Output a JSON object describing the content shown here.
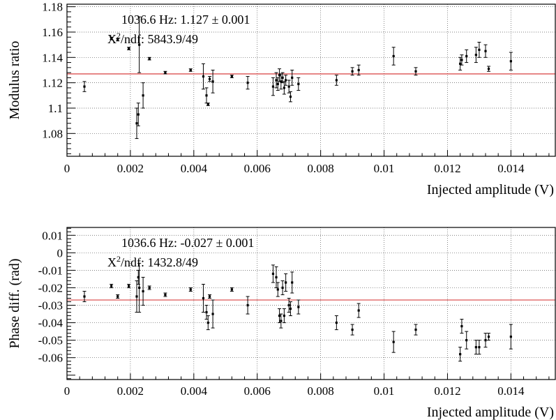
{
  "chart_data": [
    {
      "type": "scatter",
      "ylabel": "Modulus ratio",
      "xlabel": "Injected amplitude (V)",
      "xlim": [
        0,
        0.0154
      ],
      "ylim": [
        1.062,
        1.182
      ],
      "xticks": [
        0,
        0.002,
        0.004,
        0.006,
        0.008,
        0.01,
        0.012,
        0.014
      ],
      "xtick_labels": [
        "0",
        "0.002",
        "0.004",
        "0.006",
        "0.008",
        "0.01",
        "0.012",
        "0.014"
      ],
      "yticks": [
        1.08,
        1.1,
        1.12,
        1.14,
        1.16,
        1.18
      ],
      "ytick_labels": [
        "1.08",
        "1.1",
        "1.12",
        "1.14",
        "1.16",
        "1.18"
      ],
      "grid": true,
      "fit_label": "1036.6 Hz: 1.127  ± 0.001",
      "chi2_label": "/ndf: 5843.9/49",
      "fit_value": 1.127,
      "fit_color": "#d42a2a",
      "points": [
        {
          "x": 0.00055,
          "y": 1.117,
          "err": 0.004
        },
        {
          "x": 0.0014,
          "y": 1.155,
          "err": 0.001
        },
        {
          "x": 0.0016,
          "y": 1.154,
          "err": 0.001
        },
        {
          "x": 0.00195,
          "y": 1.147,
          "err": 0.001
        },
        {
          "x": 0.0022,
          "y": 1.088,
          "err": 0.012
        },
        {
          "x": 0.00225,
          "y": 1.095,
          "err": 0.009
        },
        {
          "x": 0.00228,
          "y": 1.15,
          "err": 0.022
        },
        {
          "x": 0.0024,
          "y": 1.11,
          "err": 0.01
        },
        {
          "x": 0.0026,
          "y": 1.139,
          "err": 0.001
        },
        {
          "x": 0.0031,
          "y": 1.128,
          "err": 0.001
        },
        {
          "x": 0.0039,
          "y": 1.13,
          "err": 0.001
        },
        {
          "x": 0.0043,
          "y": 1.125,
          "err": 0.01
        },
        {
          "x": 0.0044,
          "y": 1.11,
          "err": 0.006
        },
        {
          "x": 0.00445,
          "y": 1.103,
          "err": 0.001
        },
        {
          "x": 0.0045,
          "y": 1.123,
          "err": 0.002
        },
        {
          "x": 0.0046,
          "y": 1.121,
          "err": 0.009
        },
        {
          "x": 0.0052,
          "y": 1.125,
          "err": 0.001
        },
        {
          "x": 0.0057,
          "y": 1.12,
          "err": 0.005
        },
        {
          "x": 0.0065,
          "y": 1.117,
          "err": 0.007
        },
        {
          "x": 0.0066,
          "y": 1.122,
          "err": 0.006
        },
        {
          "x": 0.00665,
          "y": 1.119,
          "err": 0.005
        },
        {
          "x": 0.0067,
          "y": 1.126,
          "err": 0.005
        },
        {
          "x": 0.00675,
          "y": 1.121,
          "err": 0.006
        },
        {
          "x": 0.0068,
          "y": 1.124,
          "err": 0.004
        },
        {
          "x": 0.00685,
          "y": 1.116,
          "err": 0.005
        },
        {
          "x": 0.0069,
          "y": 1.122,
          "err": 0.004
        },
        {
          "x": 0.007,
          "y": 1.117,
          "err": 0.005
        },
        {
          "x": 0.00705,
          "y": 1.109,
          "err": 0.004
        },
        {
          "x": 0.0071,
          "y": 1.124,
          "err": 0.006
        },
        {
          "x": 0.0073,
          "y": 1.119,
          "err": 0.005
        },
        {
          "x": 0.0085,
          "y": 1.122,
          "err": 0.004
        },
        {
          "x": 0.009,
          "y": 1.129,
          "err": 0.003
        },
        {
          "x": 0.0092,
          "y": 1.13,
          "err": 0.004
        },
        {
          "x": 0.0103,
          "y": 1.141,
          "err": 0.007
        },
        {
          "x": 0.011,
          "y": 1.129,
          "err": 0.003
        },
        {
          "x": 0.0124,
          "y": 1.135,
          "err": 0.005
        },
        {
          "x": 0.01245,
          "y": 1.138,
          "err": 0.004
        },
        {
          "x": 0.0126,
          "y": 1.141,
          "err": 0.005
        },
        {
          "x": 0.0129,
          "y": 1.142,
          "err": 0.006
        },
        {
          "x": 0.013,
          "y": 1.146,
          "err": 0.006
        },
        {
          "x": 0.0132,
          "y": 1.145,
          "err": 0.005
        },
        {
          "x": 0.0133,
          "y": 1.131,
          "err": 0.002
        },
        {
          "x": 0.014,
          "y": 1.137,
          "err": 0.007
        }
      ]
    },
    {
      "type": "scatter",
      "ylabel": "Phase diff. (rad)",
      "xlabel": "Injected amplitude (V)",
      "xlim": [
        0,
        0.0154
      ],
      "ylim": [
        -0.0725,
        0.0145
      ],
      "xticks": [
        0,
        0.002,
        0.004,
        0.006,
        0.008,
        0.01,
        0.012,
        0.014
      ],
      "xtick_labels": [
        "0",
        "0.002",
        "0.004",
        "0.006",
        "0.008",
        "0.01",
        "0.012",
        "0.014"
      ],
      "yticks": [
        -0.06,
        -0.05,
        -0.04,
        -0.03,
        -0.02,
        -0.01,
        0,
        0.01
      ],
      "ytick_labels": [
        "-0.06",
        "-0.05",
        "-0.04",
        "-0.03",
        "-0.02",
        "-0.01",
        "0",
        "0.01"
      ],
      "grid": true,
      "fit_label": "1036.6 Hz: -0.027  ± 0.001",
      "chi2_label": "/ndf: 1432.8/49",
      "fit_value": -0.027,
      "fit_color": "#d42a2a",
      "points": [
        {
          "x": 0.00055,
          "y": -0.025,
          "err": 0.003
        },
        {
          "x": 0.0014,
          "y": -0.019,
          "err": 0.001
        },
        {
          "x": 0.0016,
          "y": -0.025,
          "err": 0.001
        },
        {
          "x": 0.00195,
          "y": -0.019,
          "err": 0.001
        },
        {
          "x": 0.0022,
          "y": -0.025,
          "err": 0.009
        },
        {
          "x": 0.00225,
          "y": -0.014,
          "err": 0.004
        },
        {
          "x": 0.00228,
          "y": -0.02,
          "err": 0.014
        },
        {
          "x": 0.0024,
          "y": -0.022,
          "err": 0.008
        },
        {
          "x": 0.0026,
          "y": -0.02,
          "err": 0.001
        },
        {
          "x": 0.0031,
          "y": -0.024,
          "err": 0.001
        },
        {
          "x": 0.0039,
          "y": -0.021,
          "err": 0.001
        },
        {
          "x": 0.0043,
          "y": -0.026,
          "err": 0.008
        },
        {
          "x": 0.0044,
          "y": -0.034,
          "err": 0.004
        },
        {
          "x": 0.00445,
          "y": -0.04,
          "err": 0.004
        },
        {
          "x": 0.0045,
          "y": -0.025,
          "err": 0.001
        },
        {
          "x": 0.0046,
          "y": -0.035,
          "err": 0.008
        },
        {
          "x": 0.0052,
          "y": -0.021,
          "err": 0.001
        },
        {
          "x": 0.0057,
          "y": -0.03,
          "err": 0.005
        },
        {
          "x": 0.0065,
          "y": -0.012,
          "err": 0.005
        },
        {
          "x": 0.0066,
          "y": -0.014,
          "err": 0.006
        },
        {
          "x": 0.00665,
          "y": -0.021,
          "err": 0.004
        },
        {
          "x": 0.0067,
          "y": -0.036,
          "err": 0.004
        },
        {
          "x": 0.00675,
          "y": -0.039,
          "err": 0.004
        },
        {
          "x": 0.0068,
          "y": -0.02,
          "err": 0.004
        },
        {
          "x": 0.00685,
          "y": -0.036,
          "err": 0.004
        },
        {
          "x": 0.0069,
          "y": -0.017,
          "err": 0.005
        },
        {
          "x": 0.007,
          "y": -0.03,
          "err": 0.004
        },
        {
          "x": 0.00705,
          "y": -0.032,
          "err": 0.004
        },
        {
          "x": 0.0071,
          "y": -0.017,
          "err": 0.006
        },
        {
          "x": 0.0073,
          "y": -0.031,
          "err": 0.004
        },
        {
          "x": 0.0085,
          "y": -0.04,
          "err": 0.004
        },
        {
          "x": 0.009,
          "y": -0.044,
          "err": 0.003
        },
        {
          "x": 0.0092,
          "y": -0.033,
          "err": 0.004
        },
        {
          "x": 0.0103,
          "y": -0.051,
          "err": 0.006
        },
        {
          "x": 0.011,
          "y": -0.044,
          "err": 0.003
        },
        {
          "x": 0.0124,
          "y": -0.058,
          "err": 0.004
        },
        {
          "x": 0.01245,
          "y": -0.042,
          "err": 0.004
        },
        {
          "x": 0.0126,
          "y": -0.05,
          "err": 0.005
        },
        {
          "x": 0.0129,
          "y": -0.054,
          "err": 0.004
        },
        {
          "x": 0.013,
          "y": -0.054,
          "err": 0.004
        },
        {
          "x": 0.0132,
          "y": -0.05,
          "err": 0.004
        },
        {
          "x": 0.0133,
          "y": -0.048,
          "err": 0.002
        },
        {
          "x": 0.014,
          "y": -0.048,
          "err": 0.007
        }
      ]
    }
  ]
}
